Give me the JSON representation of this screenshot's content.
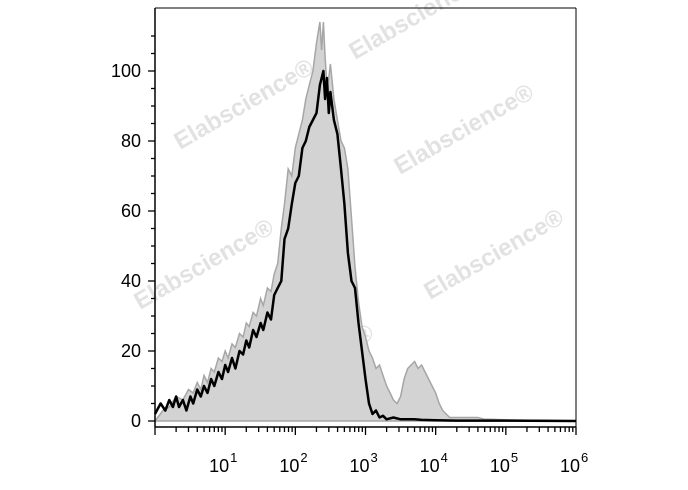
{
  "chart_data": {
    "type": "histogram",
    "title": "",
    "xlabel": "",
    "ylabel": "",
    "x_scale": "log10",
    "xlim": [
      1,
      1000000
    ],
    "ylim": [
      0,
      115
    ],
    "grid": false,
    "legend": "none",
    "y_ticks": [
      {
        "value": 0,
        "label": "0"
      },
      {
        "value": 20,
        "label": "20"
      },
      {
        "value": 40,
        "label": "40"
      },
      {
        "value": 60,
        "label": "60"
      },
      {
        "value": 80,
        "label": "80"
      },
      {
        "value": 100,
        "label": "100"
      }
    ],
    "x_ticks": [
      {
        "value": 10,
        "base": "10",
        "exp": "1"
      },
      {
        "value": 100,
        "base": "10",
        "exp": "2"
      },
      {
        "value": 1000,
        "base": "10",
        "exp": "3"
      },
      {
        "value": 10000,
        "base": "10",
        "exp": "4"
      },
      {
        "value": 100000,
        "base": "10",
        "exp": "5"
      },
      {
        "value": 1000000,
        "base": "10",
        "exp": "6"
      }
    ],
    "series": [
      {
        "style": "filled",
        "fill": "#d3d3d3",
        "stroke": "#a6a6a6",
        "points": [
          [
            1,
            0
          ],
          [
            1.3,
            3
          ],
          [
            1.6,
            4
          ],
          [
            2,
            7
          ],
          [
            2.5,
            6
          ],
          [
            3,
            9
          ],
          [
            3.5,
            8
          ],
          [
            4,
            11
          ],
          [
            4.5,
            9
          ],
          [
            5,
            13
          ],
          [
            5.6,
            11
          ],
          [
            6.3,
            15
          ],
          [
            7,
            14
          ],
          [
            8,
            18
          ],
          [
            9,
            17
          ],
          [
            10,
            20
          ],
          [
            11,
            18
          ],
          [
            12.5,
            22
          ],
          [
            14,
            21
          ],
          [
            16,
            25
          ],
          [
            18,
            24
          ],
          [
            20,
            28
          ],
          [
            22,
            27
          ],
          [
            25,
            31
          ],
          [
            28,
            30
          ],
          [
            32,
            35
          ],
          [
            35,
            33
          ],
          [
            40,
            38
          ],
          [
            45,
            37
          ],
          [
            50,
            42
          ],
          [
            56,
            45
          ],
          [
            63,
            55
          ],
          [
            70,
            62
          ],
          [
            79,
            72
          ],
          [
            89,
            70
          ],
          [
            100,
            78
          ],
          [
            112,
            82
          ],
          [
            126,
            86
          ],
          [
            141,
            92
          ],
          [
            158,
            96
          ],
          [
            178,
            100
          ],
          [
            200,
            108
          ],
          [
            224,
            114
          ],
          [
            237,
            106
          ],
          [
            251,
            114
          ],
          [
            266,
            104
          ],
          [
            282,
            96
          ],
          [
            300,
            98
          ],
          [
            316,
            102
          ],
          [
            355,
            92
          ],
          [
            398,
            86
          ],
          [
            447,
            80
          ],
          [
            501,
            78
          ],
          [
            562,
            72
          ],
          [
            631,
            58
          ],
          [
            708,
            44
          ],
          [
            794,
            34
          ],
          [
            891,
            27
          ],
          [
            1000,
            24
          ],
          [
            1122,
            20
          ],
          [
            1259,
            18
          ],
          [
            1413,
            15
          ],
          [
            1585,
            16
          ],
          [
            1778,
            13
          ],
          [
            2000,
            10
          ],
          [
            2240,
            8
          ],
          [
            2500,
            6
          ],
          [
            2820,
            5
          ],
          [
            3160,
            7
          ],
          [
            3550,
            12
          ],
          [
            4000,
            15
          ],
          [
            4470,
            16
          ],
          [
            5010,
            17
          ],
          [
            5620,
            15
          ],
          [
            6310,
            16
          ],
          [
            7080,
            14
          ],
          [
            7940,
            12
          ],
          [
            8910,
            10
          ],
          [
            10000,
            8
          ],
          [
            11220,
            5
          ],
          [
            12590,
            3
          ],
          [
            14130,
            2
          ],
          [
            15850,
            1
          ],
          [
            20000,
            1
          ],
          [
            25000,
            1
          ],
          [
            31620,
            1
          ],
          [
            39810,
            1
          ],
          [
            50120,
            0.5
          ],
          [
            63100,
            0.5
          ],
          [
            100000,
            0.3
          ],
          [
            200000,
            0.2
          ],
          [
            500000,
            0.1
          ],
          [
            1000000,
            0
          ]
        ]
      },
      {
        "style": "line",
        "stroke": "#000000",
        "points": [
          [
            1,
            2
          ],
          [
            1.2,
            5
          ],
          [
            1.4,
            3
          ],
          [
            1.6,
            6
          ],
          [
            1.8,
            4
          ],
          [
            2,
            7
          ],
          [
            2.2,
            4
          ],
          [
            2.5,
            6
          ],
          [
            2.8,
            3
          ],
          [
            3.2,
            7
          ],
          [
            3.5,
            5
          ],
          [
            4,
            9
          ],
          [
            4.5,
            7
          ],
          [
            5,
            10
          ],
          [
            5.6,
            8
          ],
          [
            6.3,
            12
          ],
          [
            7,
            10
          ],
          [
            8,
            14
          ],
          [
            9,
            12
          ],
          [
            10,
            16
          ],
          [
            11,
            14
          ],
          [
            12.5,
            18
          ],
          [
            14,
            15
          ],
          [
            16,
            20
          ],
          [
            18,
            19
          ],
          [
            20,
            23
          ],
          [
            22,
            21
          ],
          [
            25,
            26
          ],
          [
            28,
            24
          ],
          [
            32,
            28
          ],
          [
            35,
            26
          ],
          [
            40,
            31
          ],
          [
            45,
            29
          ],
          [
            50,
            36
          ],
          [
            56,
            38
          ],
          [
            63,
            40
          ],
          [
            70,
            52
          ],
          [
            79,
            55
          ],
          [
            89,
            62
          ],
          [
            100,
            68
          ],
          [
            112,
            70
          ],
          [
            126,
            78
          ],
          [
            141,
            80
          ],
          [
            158,
            84
          ],
          [
            178,
            86
          ],
          [
            200,
            88
          ],
          [
            224,
            96
          ],
          [
            251,
            100
          ],
          [
            266,
            92
          ],
          [
            282,
            98
          ],
          [
            300,
            88
          ],
          [
            316,
            94
          ],
          [
            355,
            86
          ],
          [
            398,
            82
          ],
          [
            447,
            72
          ],
          [
            501,
            62
          ],
          [
            562,
            48
          ],
          [
            631,
            40
          ],
          [
            708,
            38
          ],
          [
            794,
            28
          ],
          [
            891,
            20
          ],
          [
            1000,
            12
          ],
          [
            1122,
            5
          ],
          [
            1259,
            2
          ],
          [
            1413,
            3
          ],
          [
            1585,
            1
          ],
          [
            1778,
            1.5
          ],
          [
            2000,
            0.5
          ],
          [
            2500,
            1
          ],
          [
            3160,
            0.5
          ],
          [
            4000,
            0.5
          ],
          [
            5010,
            0.5
          ],
          [
            6310,
            0.3
          ],
          [
            10000,
            0.2
          ],
          [
            20000,
            0.1
          ],
          [
            100000,
            0.1
          ],
          [
            1000000,
            0
          ]
        ]
      }
    ],
    "watermark": "Elabscience®"
  }
}
